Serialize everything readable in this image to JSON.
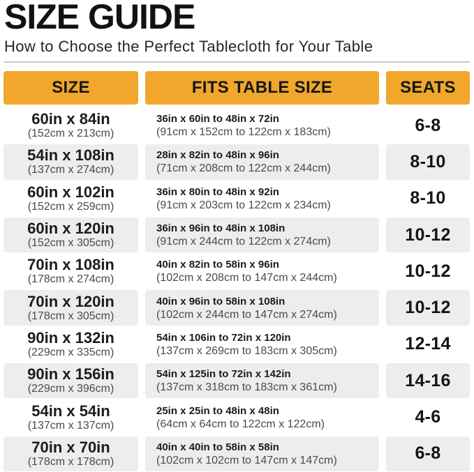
{
  "page": {
    "title": "SIZE GUIDE",
    "subtitle": "How to Choose the Perfect Tablecloth for Your Table"
  },
  "table": {
    "headers": {
      "size": "SIZE",
      "fits": "FITS TABLE SIZE",
      "seats": "SEATS"
    },
    "rows": [
      {
        "size_in": "60in x 84in",
        "size_cm": "(152cm x 213cm)",
        "fits_in": "36in x 60in to 48in x 72in",
        "fits_cm": "(91cm x 152cm to 122cm x 183cm)",
        "seats": "6-8"
      },
      {
        "size_in": "54in x 108in",
        "size_cm": "(137cm x 274cm)",
        "fits_in": "28in x 82in to 48in x 96in",
        "fits_cm": "(71cm x 208cm to 122cm x 244cm)",
        "seats": "8-10"
      },
      {
        "size_in": "60in x 102in",
        "size_cm": "(152cm x 259cm)",
        "fits_in": "36in x 80in to 48in x 92in",
        "fits_cm": "(91cm x 203cm to 122cm x 234cm)",
        "seats": "8-10"
      },
      {
        "size_in": "60in x 120in",
        "size_cm": "(152cm x 305cm)",
        "fits_in": "36in x 96in to 48in x 108in",
        "fits_cm": "(91cm x 244cm to 122cm x 274cm)",
        "seats": "10-12"
      },
      {
        "size_in": "70in x 108in",
        "size_cm": "(178cm x 274cm)",
        "fits_in": "40in x 82in to 58in x 96in",
        "fits_cm": "(102cm x 208cm to 147cm x 244cm)",
        "seats": "10-12"
      },
      {
        "size_in": "70in x 120in",
        "size_cm": "(178cm x 305cm)",
        "fits_in": "40in x 96in to 58in x 108in",
        "fits_cm": "(102cm x 244cm to 147cm x 274cm)",
        "seats": "10-12"
      },
      {
        "size_in": "90in x 132in",
        "size_cm": "(229cm x 335cm)",
        "fits_in": "54in x 106in to 72in x 120in",
        "fits_cm": "(137cm x 269cm to 183cm x 305cm)",
        "seats": "12-14"
      },
      {
        "size_in": "90in x 156in",
        "size_cm": "(229cm x 396cm)",
        "fits_in": "54in x 125in to 72in x 142in",
        "fits_cm": "(137cm x 318cm to 183cm x 361cm)",
        "seats": "14-16"
      },
      {
        "size_in": "54in x 54in",
        "size_cm": "(137cm x 137cm)",
        "fits_in": "25in x 25in to 48in x 48in",
        "fits_cm": "(64cm x 64cm to 122cm x 122cm)",
        "seats": "4-6"
      },
      {
        "size_in": "70in x 70in",
        "size_cm": "(178cm x 178cm)",
        "fits_in": "40in x 40in to 58in x 58in",
        "fits_cm": "(102cm x 102cm to 147cm x 147cm)",
        "seats": "6-8"
      }
    ]
  },
  "colors": {
    "accent_orange": "#F0A72B",
    "row_gray": "#EDEDED",
    "divider_gray": "#C9C9C9"
  }
}
